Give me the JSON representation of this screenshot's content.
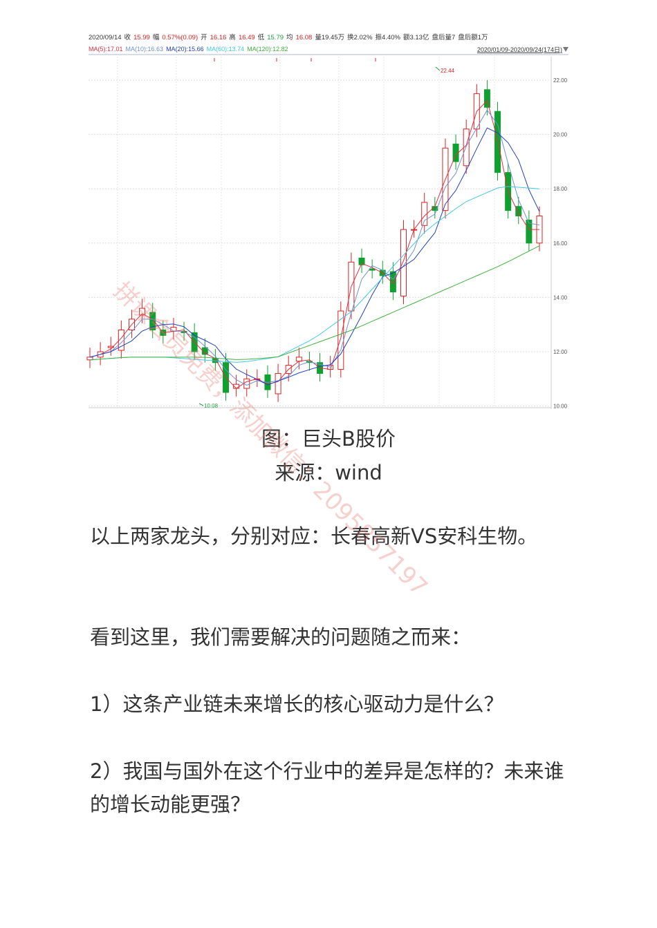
{
  "chart_header": {
    "line1": [
      {
        "t": "2020/09/14",
        "c": "#333"
      },
      {
        "t": "收",
        "c": "#333"
      },
      {
        "t": "15.99",
        "c": "#e02020"
      },
      {
        "t": "幅",
        "c": "#333"
      },
      {
        "t": "0.57%(0.09)",
        "c": "#e02020"
      },
      {
        "t": "开",
        "c": "#333"
      },
      {
        "t": "16.16",
        "c": "#e02020"
      },
      {
        "t": "高",
        "c": "#333"
      },
      {
        "t": "16.49",
        "c": "#e02020"
      },
      {
        "t": "低",
        "c": "#333"
      },
      {
        "t": "15.79",
        "c": "#20a040"
      },
      {
        "t": "均",
        "c": "#333"
      },
      {
        "t": "16.08",
        "c": "#e02020"
      },
      {
        "t": "量19.45万",
        "c": "#333"
      },
      {
        "t": "换2.02%",
        "c": "#333"
      },
      {
        "t": "振4.40%",
        "c": "#333"
      },
      {
        "t": "额3.13亿",
        "c": "#333"
      },
      {
        "t": "盘后量7",
        "c": "#333"
      },
      {
        "t": "盘后额1万",
        "c": "#333"
      }
    ],
    "line2": [
      {
        "t": "MA(5):17.01",
        "c": "#e03040"
      },
      {
        "t": "MA(10):16.63",
        "c": "#7090d0"
      },
      {
        "t": "MA(20):15.66",
        "c": "#2040c0"
      },
      {
        "t": "MA(60):13.74",
        "c": "#40c8e0"
      },
      {
        "t": "MA(120):12.82",
        "c": "#40b040"
      }
    ],
    "range": "2020/01/09-2020/09/24(174日)"
  },
  "chart_data": {
    "type": "candlestick",
    "y_ticks": [
      "22.00",
      "20.00",
      "18.00",
      "16.00",
      "14.00",
      "12.00",
      "10.00"
    ],
    "ylim": [
      10,
      22
    ],
    "high_label": "22.44",
    "low_label": "10.08",
    "closes": [
      11.8,
      12.0,
      12.2,
      12.8,
      13.2,
      13.6,
      12.8,
      12.6,
      12.9,
      12.7,
      12.0,
      11.9,
      11.6,
      10.5,
      10.8,
      11.0,
      11.0,
      10.6,
      11.2,
      11.5,
      11.8,
      11.6,
      11.2,
      11.5,
      13.5,
      15.3,
      15.2,
      15.0,
      14.8,
      14.2,
      16.5,
      16.5,
      17.5,
      17.2,
      19.5,
      19.0,
      20.2,
      21.5,
      21.0,
      18.6,
      17.2,
      17.0,
      16.0,
      17.0
    ],
    "ma60": [
      11.7,
      11.8,
      11.8,
      11.7,
      11.6,
      11.8,
      12.5,
      13.5,
      15.0,
      16.5,
      17.5,
      18.1,
      18.0
    ],
    "ma120": [
      11.7,
      11.8,
      11.8,
      11.8,
      11.7,
      11.8,
      12.3,
      12.8,
      13.4,
      14.0,
      14.6,
      15.2,
      15.9
    ],
    "colors": {
      "up": "#e02020",
      "down": "#10a030",
      "ma5": "#e03040",
      "ma10": "#7090d0",
      "ma20": "#2040c0",
      "ma60": "#40c8e0",
      "ma120": "#40b040"
    }
  },
  "captions": {
    "figure": "图：巨头B股价",
    "source": "来源：wind"
  },
  "paragraphs": [
    "以上两家龙头，分别对应：长春高新VS安科生物。",
    "看到这里，我们需要解决的问题随之而来：",
    "1）这条产业链未来增长的核心驱动力是什么？",
    "2）我国与国外在这个行业中的差异是怎样的？未来谁的增长动能更强？"
  ],
  "watermark": "拼课会员免费，添加微信：2095857197"
}
